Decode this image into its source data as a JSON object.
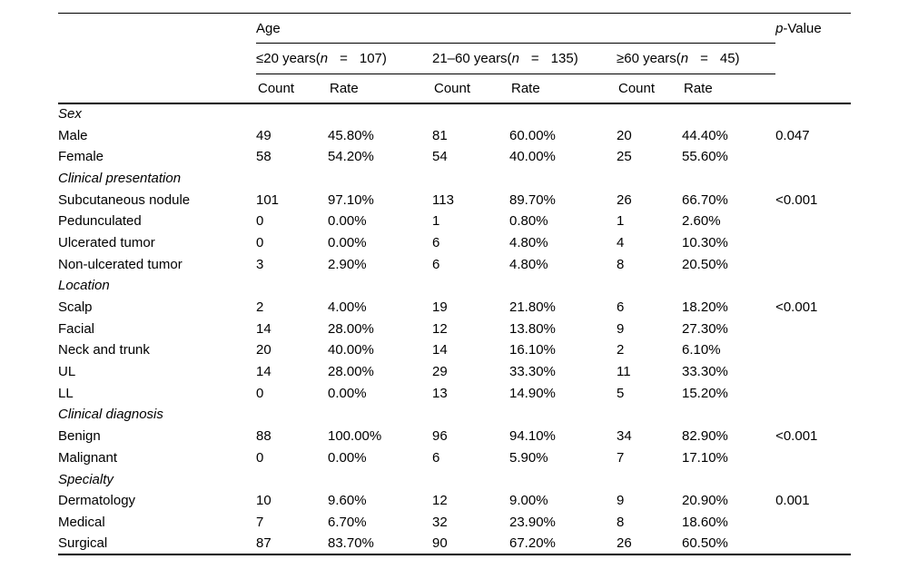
{
  "table": {
    "age_header": "Age",
    "p_value_header": {
      "p": "p",
      "rest": "-Value"
    },
    "col_headers": {
      "count": "Count",
      "rate": "Rate"
    },
    "groups": [
      {
        "prefix": "≤20 years(",
        "n": "n",
        "eq": "=",
        "count_suffix": "107)"
      },
      {
        "prefix": "21–60 years(",
        "n": "n",
        "eq": "=",
        "count_suffix": "135)"
      },
      {
        "prefix": "≥60 years(",
        "n": "n",
        "eq": "=",
        "count_suffix": "45)"
      }
    ],
    "sections": [
      {
        "title": "Sex",
        "rows": [
          {
            "label": "Male",
            "values": [
              "49",
              "45.80%",
              "81",
              "60.00%",
              "20",
              "44.40%"
            ],
            "p": "0.047"
          },
          {
            "label": "Female",
            "values": [
              "58",
              "54.20%",
              "54",
              "40.00%",
              "25",
              "55.60%"
            ],
            "p": ""
          }
        ]
      },
      {
        "title": "Clinical presentation",
        "rows": [
          {
            "label": "Subcutaneous nodule",
            "values": [
              "101",
              "97.10%",
              "113",
              "89.70%",
              "26",
              "66.70%"
            ],
            "p": "<0.001"
          },
          {
            "label": "Pedunculated",
            "values": [
              "0",
              "0.00%",
              "1",
              "0.80%",
              "1",
              "2.60%"
            ],
            "p": ""
          },
          {
            "label": "Ulcerated tumor",
            "values": [
              "0",
              "0.00%",
              "6",
              "4.80%",
              "4",
              "10.30%"
            ],
            "p": ""
          },
          {
            "label": "Non-ulcerated tumor",
            "values": [
              "3",
              "2.90%",
              "6",
              "4.80%",
              "8",
              "20.50%"
            ],
            "p": ""
          }
        ]
      },
      {
        "title": "Location",
        "rows": [
          {
            "label": "Scalp",
            "values": [
              "2",
              "4.00%",
              "19",
              "21.80%",
              "6",
              "18.20%"
            ],
            "p": "<0.001"
          },
          {
            "label": "Facial",
            "values": [
              "14",
              "28.00%",
              "12",
              "13.80%",
              "9",
              "27.30%"
            ],
            "p": ""
          },
          {
            "label": "Neck and trunk",
            "values": [
              "20",
              "40.00%",
              "14",
              "16.10%",
              "2",
              "6.10%"
            ],
            "p": ""
          },
          {
            "label": "UL",
            "values": [
              "14",
              "28.00%",
              "29",
              "33.30%",
              "11",
              "33.30%"
            ],
            "p": ""
          },
          {
            "label": "LL",
            "values": [
              "0",
              "0.00%",
              "13",
              "14.90%",
              "5",
              "15.20%"
            ],
            "p": ""
          }
        ]
      },
      {
        "title": "Clinical diagnosis",
        "rows": [
          {
            "label": "Benign",
            "values": [
              "88",
              "100.00%",
              "96",
              "94.10%",
              "34",
              "82.90%"
            ],
            "p": "<0.001"
          },
          {
            "label": "Malignant",
            "values": [
              "0",
              "0.00%",
              "6",
              "5.90%",
              "7",
              "17.10%"
            ],
            "p": ""
          }
        ]
      },
      {
        "title": "Specialty",
        "rows": [
          {
            "label": "Dermatology",
            "values": [
              "10",
              "9.60%",
              "12",
              "9.00%",
              "9",
              "20.90%"
            ],
            "p": "0.001"
          },
          {
            "label": "Medical",
            "values": [
              "7",
              "6.70%",
              "32",
              "23.90%",
              "8",
              "18.60%"
            ],
            "p": ""
          },
          {
            "label": "Surgical",
            "values": [
              "87",
              "83.70%",
              "90",
              "67.20%",
              "26",
              "60.50%"
            ],
            "p": ""
          }
        ]
      }
    ]
  }
}
